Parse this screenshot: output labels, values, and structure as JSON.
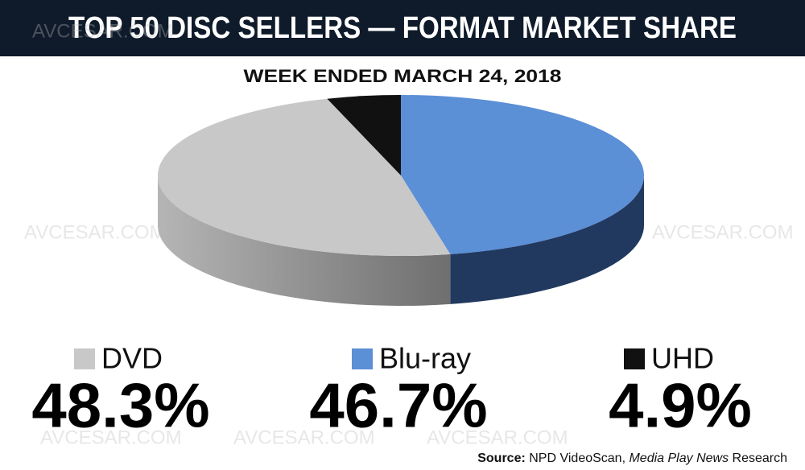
{
  "chart_data": {
    "type": "pie3d",
    "title": "TOP 50 DISC SELLERS — FORMAT MARKET SHARE",
    "subtitle": "WEEK ENDED MARCH 24, 2018",
    "series": [
      {
        "name": "DVD",
        "color": "#c8c8c8",
        "values": [
          48.3
        ],
        "value_labels": [
          "48.3%"
        ]
      },
      {
        "name": "Blu-ray",
        "color": "#5b8fd6",
        "values": [
          46.7
        ],
        "value_labels": [
          "46.7%"
        ]
      },
      {
        "name": "UHD",
        "color": "#111111",
        "values": [
          4.9
        ],
        "value_labels": [
          "4.9%"
        ]
      }
    ],
    "source_label": "Source:",
    "source_parts": [
      "NPD VideoScan, ",
      "Media Play News",
      " Research"
    ],
    "watermark": "AVCESAR.COM"
  }
}
